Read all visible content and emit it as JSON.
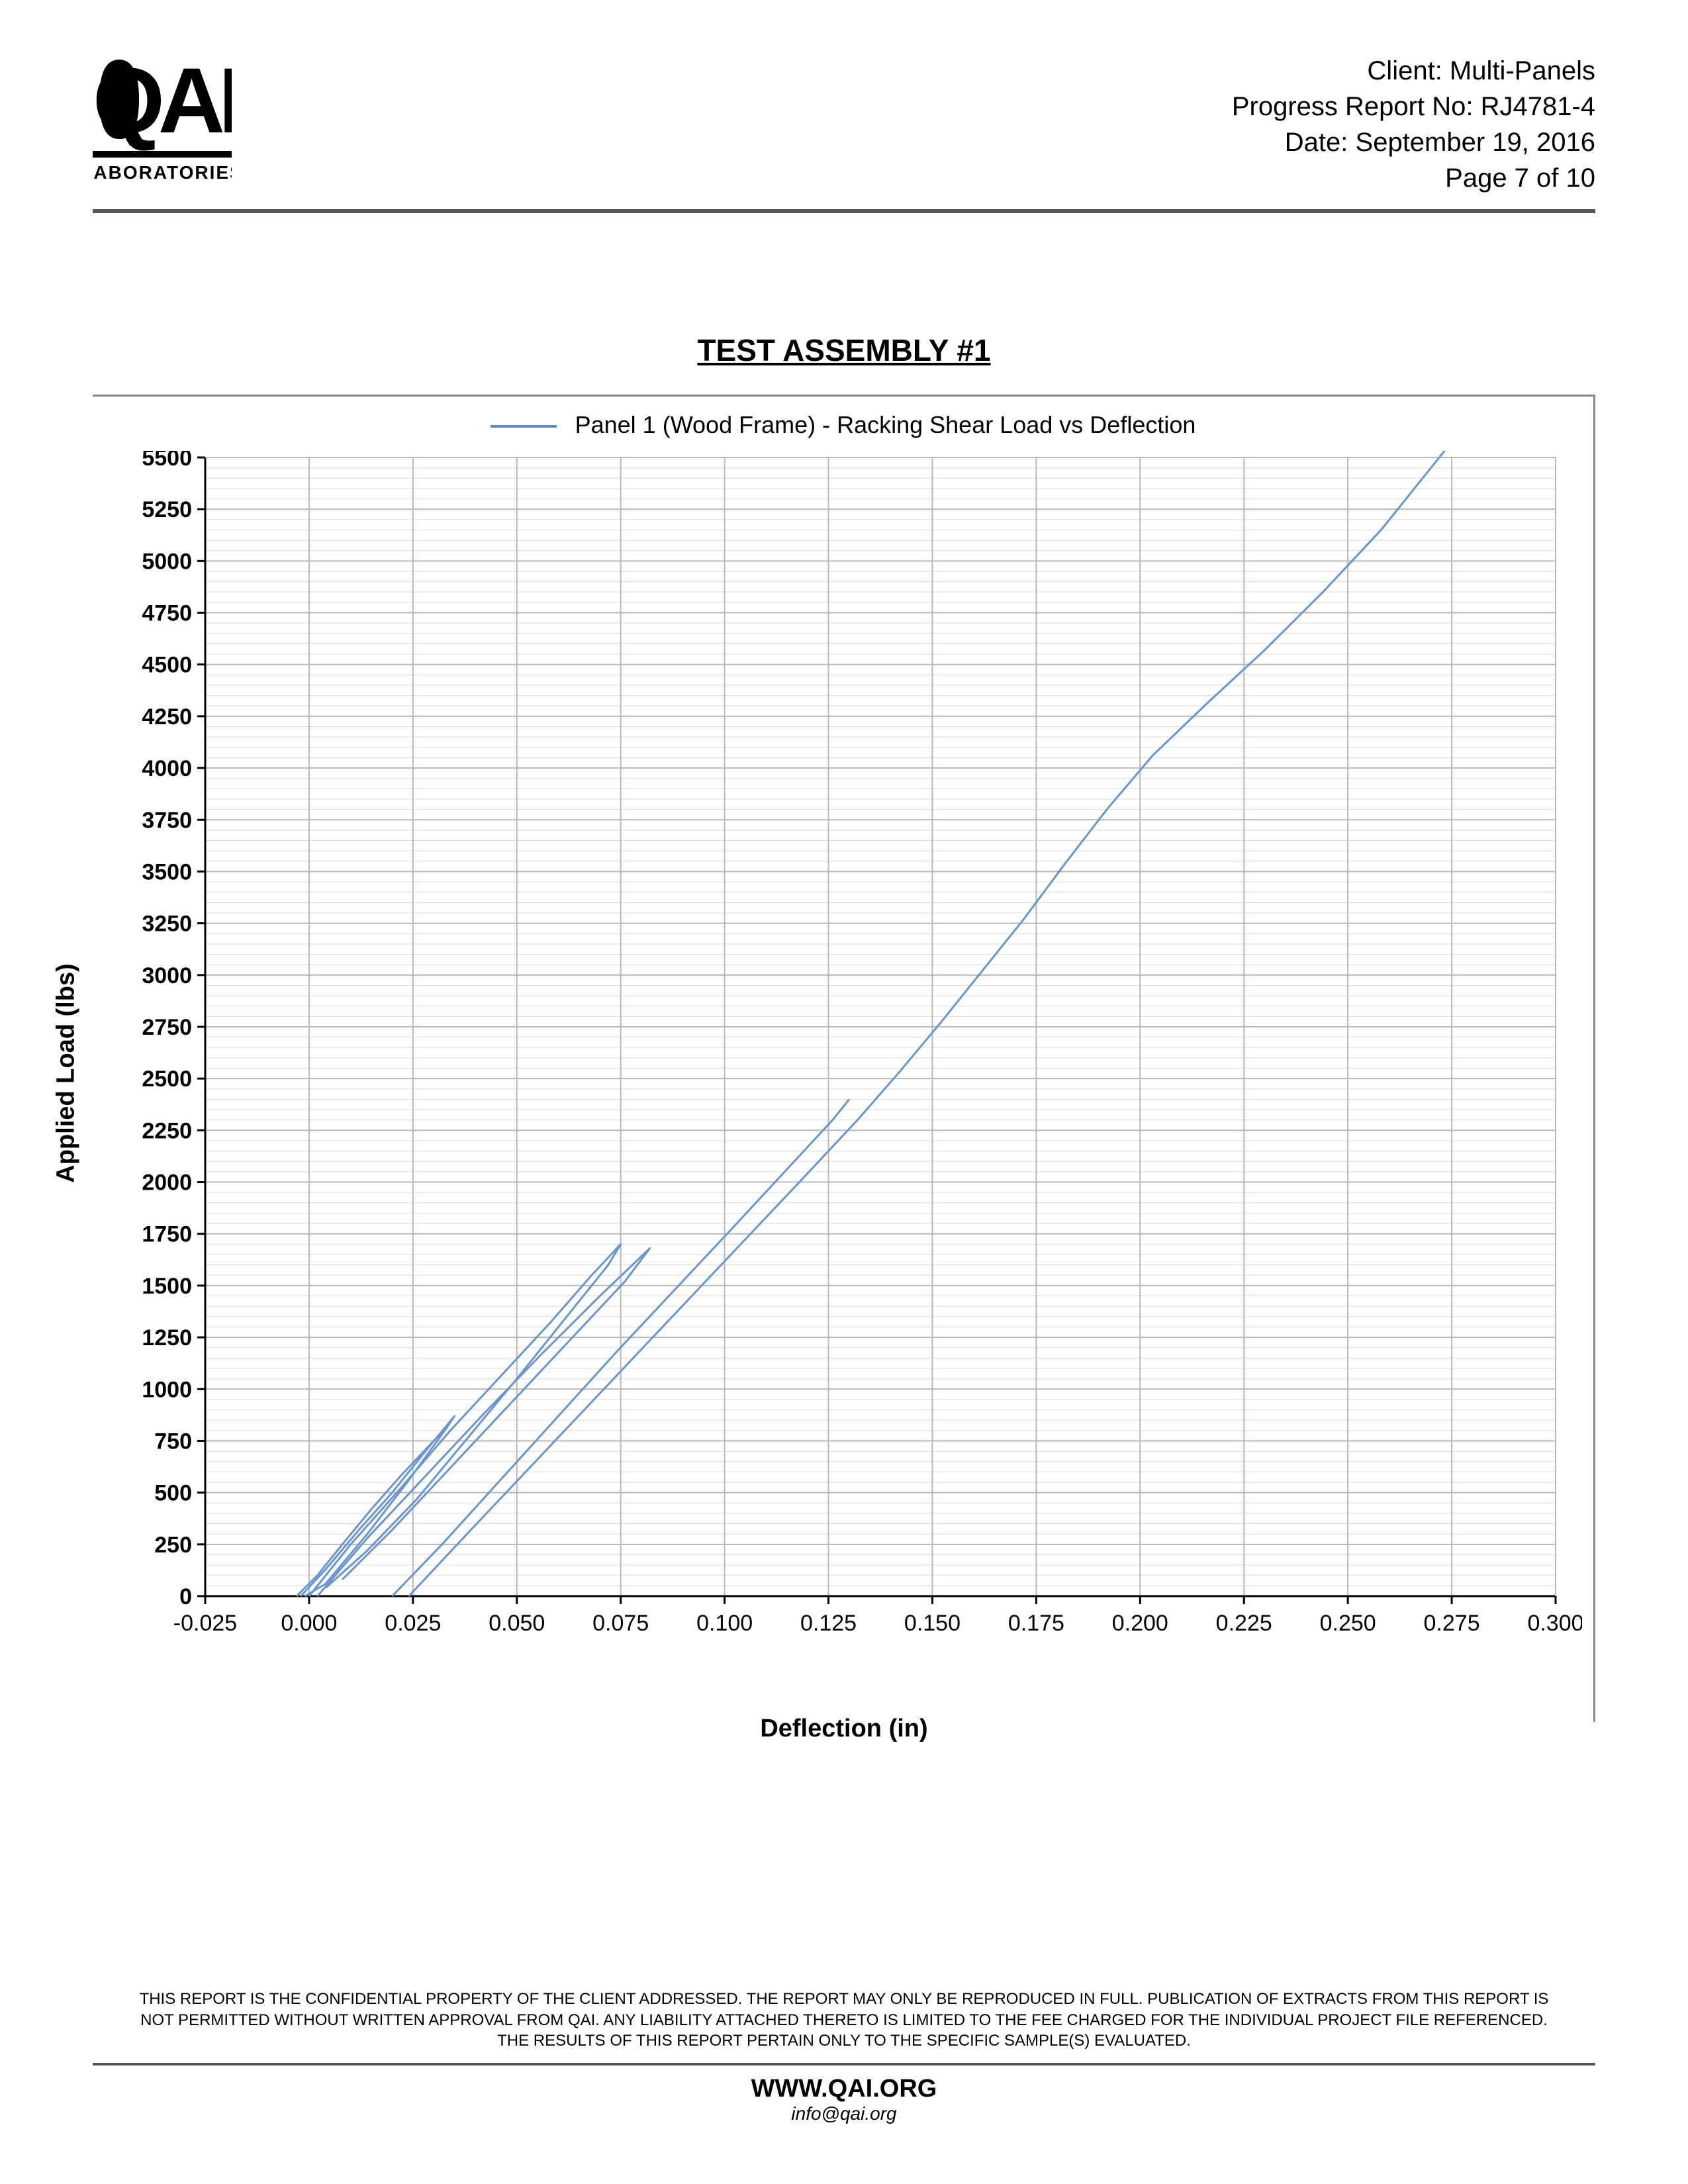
{
  "header": {
    "client": "Client: Multi-Panels",
    "report_no": "Progress Report No: RJ4781-4",
    "date": "Date: September 19, 2016",
    "page": "Page 7 of 10",
    "logo_text": "QAI",
    "logo_sub": "LABORATORIES"
  },
  "section_title": "TEST ASSEMBLY #1",
  "chart": {
    "type": "line",
    "legend_label": "Panel 1 (Wood Frame) - Racking Shear Load vs Deflection",
    "x_label": "Deflection (in)",
    "y_label": "Applied Load (lbs)",
    "x_min": -0.025,
    "x_max": 0.3,
    "y_min": 0,
    "y_max": 5500,
    "x_tick_step": 0.025,
    "y_tick_step": 250,
    "x_ticks": [
      "-0.025",
      "0.000",
      "0.025",
      "0.050",
      "0.075",
      "0.100",
      "0.125",
      "0.150",
      "0.175",
      "0.200",
      "0.225",
      "0.250",
      "0.275",
      "0.300"
    ],
    "tick_fontsize": 34,
    "label_fontsize": 38,
    "line_color": "#6a96d0",
    "line_width": 3,
    "major_grid_color": "#b8b8b8",
    "minor_grid_color": "#dcdcdc",
    "axis_color": "#000000",
    "background_color": "#ffffff",
    "minor_y_per_major": 5,
    "series": [
      [
        [
          -0.003,
          0
        ],
        [
          0.002,
          100
        ],
        [
          0.008,
          250
        ],
        [
          0.015,
          420
        ],
        [
          0.022,
          580
        ],
        [
          0.03,
          750
        ],
        [
          0.032,
          790
        ]
      ],
      [
        [
          -0.002,
          0
        ],
        [
          0.004,
          130
        ],
        [
          0.012,
          320
        ],
        [
          0.02,
          500
        ],
        [
          0.028,
          700
        ],
        [
          0.035,
          870
        ],
        [
          0.033,
          810
        ],
        [
          0.024,
          560
        ],
        [
          0.014,
          300
        ],
        [
          0.004,
          60
        ],
        [
          -0.001,
          0
        ]
      ],
      [
        [
          0.0,
          0
        ],
        [
          0.01,
          250
        ],
        [
          0.022,
          520
        ],
        [
          0.034,
          800
        ],
        [
          0.046,
          1060
        ],
        [
          0.058,
          1320
        ],
        [
          0.068,
          1550
        ],
        [
          0.075,
          1700
        ],
        [
          0.072,
          1600
        ],
        [
          0.062,
          1350
        ],
        [
          0.05,
          1050
        ],
        [
          0.038,
          760
        ],
        [
          0.026,
          470
        ],
        [
          0.014,
          220
        ],
        [
          0.004,
          40
        ]
      ],
      [
        [
          0.002,
          0
        ],
        [
          0.014,
          280
        ],
        [
          0.028,
          580
        ],
        [
          0.042,
          880
        ],
        [
          0.056,
          1170
        ],
        [
          0.07,
          1450
        ],
        [
          0.082,
          1680
        ],
        [
          0.076,
          1520
        ],
        [
          0.062,
          1220
        ],
        [
          0.048,
          920
        ],
        [
          0.034,
          620
        ],
        [
          0.02,
          320
        ],
        [
          0.008,
          80
        ]
      ],
      [
        [
          0.02,
          0
        ],
        [
          0.032,
          250
        ],
        [
          0.046,
          560
        ],
        [
          0.06,
          870
        ],
        [
          0.074,
          1180
        ],
        [
          0.088,
          1480
        ],
        [
          0.102,
          1780
        ],
        [
          0.114,
          2040
        ],
        [
          0.126,
          2300
        ],
        [
          0.13,
          2400
        ]
      ],
      [
        [
          0.024,
          0
        ],
        [
          0.038,
          300
        ],
        [
          0.054,
          640
        ],
        [
          0.07,
          980
        ],
        [
          0.086,
          1320
        ],
        [
          0.102,
          1660
        ],
        [
          0.118,
          2000
        ],
        [
          0.132,
          2300
        ],
        [
          0.142,
          2530
        ],
        [
          0.152,
          2770
        ],
        [
          0.162,
          3020
        ],
        [
          0.172,
          3270
        ],
        [
          0.182,
          3540
        ],
        [
          0.192,
          3800
        ],
        [
          0.203,
          4060
        ],
        [
          0.216,
          4310
        ],
        [
          0.23,
          4570
        ],
        [
          0.244,
          4850
        ],
        [
          0.258,
          5150
        ],
        [
          0.27,
          5450
        ],
        [
          0.276,
          5600
        ]
      ]
    ]
  },
  "footer": {
    "disclaimer_l1": "THIS REPORT IS THE CONFIDENTIAL PROPERTY OF THE CLIENT ADDRESSED. THE REPORT MAY ONLY BE REPRODUCED IN FULL. PUBLICATION OF EXTRACTS FROM THIS REPORT IS",
    "disclaimer_l2": "NOT PERMITTED WITHOUT WRITTEN APPROVAL FROM QAI. ANY LIABILITY ATTACHED THERETO IS LIMITED TO THE FEE CHARGED FOR THE INDIVIDUAL PROJECT FILE REFERENCED.",
    "disclaimer_l3": "THE RESULTS OF THIS REPORT PERTAIN ONLY TO THE SPECIFIC SAMPLE(S) EVALUATED.",
    "url": "WWW.QAI.ORG",
    "email": "info@qai.org"
  }
}
